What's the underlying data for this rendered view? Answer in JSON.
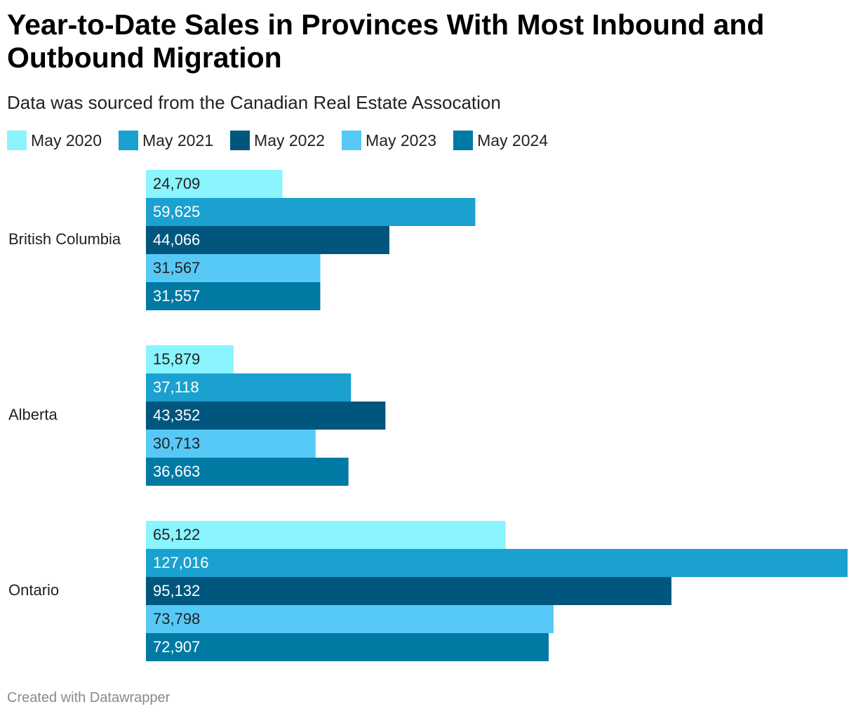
{
  "chart_data": {
    "type": "bar",
    "orientation": "horizontal",
    "title": "Year-to-Date Sales in Provinces With Most Inbound and Outbound Migration",
    "subtitle": "Data was sourced from the Canadian Real Estate Assocation",
    "categories": [
      "British Columbia",
      "Alberta",
      "Ontario"
    ],
    "series": [
      {
        "name": "May 2020",
        "color": "#8af4ff",
        "label_color": "#222222",
        "values": [
          24709,
          15879,
          65122
        ],
        "labels": [
          "24,709",
          "15,879",
          "65,122"
        ]
      },
      {
        "name": "May 2021",
        "color": "#1aa1cf",
        "label_color": "#ffffff",
        "values": [
          59625,
          37118,
          127016
        ],
        "labels": [
          "59,625",
          "37,118",
          "127,016"
        ]
      },
      {
        "name": "May 2022",
        "color": "#00567d",
        "label_color": "#ffffff",
        "values": [
          44066,
          43352,
          95132
        ],
        "labels": [
          "44,066",
          "43,352",
          "95,132"
        ]
      },
      {
        "name": "May 2023",
        "color": "#57c9f7",
        "label_color": "#222222",
        "values": [
          31567,
          30713,
          73798
        ],
        "labels": [
          "31,567",
          "30,713",
          "73,798"
        ]
      },
      {
        "name": "May 2024",
        "color": "#0079a3",
        "label_color": "#ffffff",
        "values": [
          31557,
          36663,
          72907
        ],
        "labels": [
          "31,557",
          "36,663",
          "72,907"
        ]
      }
    ],
    "xlim": [
      0,
      127016
    ],
    "grid": false,
    "legend_position": "top-left"
  },
  "footer": "Created with Datawrapper"
}
